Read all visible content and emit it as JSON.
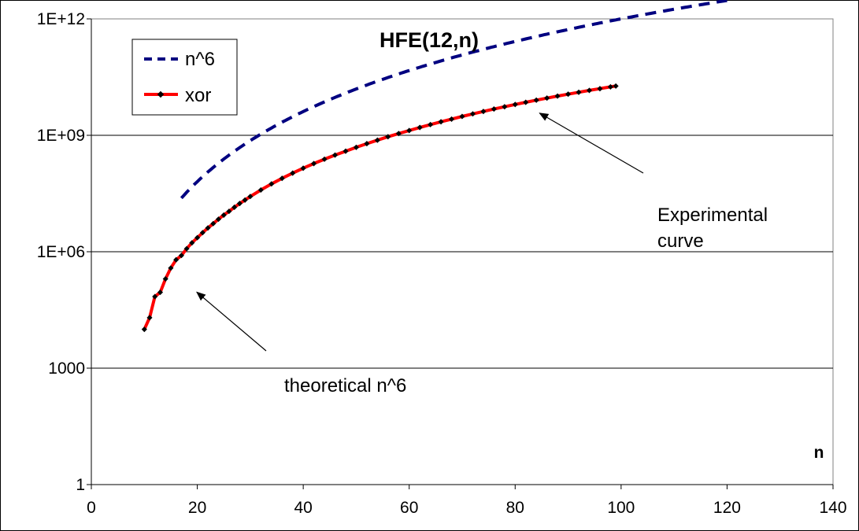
{
  "chart_data": {
    "type": "line",
    "title": "HFE(12,n)",
    "xlabel": "n",
    "ylabel": "",
    "xlim": [
      0,
      140
    ],
    "ylim": [
      1,
      1000000000000
    ],
    "y_scale": "log",
    "x_ticks": [
      0,
      20,
      40,
      60,
      80,
      100,
      120,
      140
    ],
    "y_ticks": [
      1,
      1000,
      1000000,
      1000000000,
      1000000000000
    ],
    "y_tick_labels": [
      "1",
      "1000",
      "1E+06",
      "1E+09",
      "1E+12"
    ],
    "grid": "horizontal",
    "legend_position": "top-left",
    "series": [
      {
        "name": "n^6",
        "style": "dashed",
        "color": "#000080",
        "x_range": [
          17,
          120
        ],
        "formula": "n^6 (theoretical)"
      },
      {
        "name": "xor",
        "style": "solid-with-markers",
        "color": "#ff0000",
        "marker_color": "#000000",
        "x": [
          10,
          11,
          12,
          13,
          14,
          15,
          16,
          17,
          18,
          19,
          20,
          21,
          22,
          23,
          24,
          25,
          26,
          27,
          28,
          29,
          30,
          32,
          34,
          36,
          38,
          40,
          42,
          44,
          46,
          48,
          50,
          52,
          54,
          56,
          58,
          60,
          62,
          64,
          66,
          68,
          70,
          72,
          74,
          76,
          78,
          80,
          82,
          84,
          86,
          88,
          90,
          92,
          94,
          96,
          98,
          99
        ],
        "y": [
          10000,
          20000,
          70000,
          90000,
          200000,
          380000,
          620000,
          800000,
          1200000,
          1700000,
          2300000,
          3100000,
          4100000,
          5300000,
          6900000,
          8800000,
          11000000,
          14000000,
          17500000,
          21500000,
          26500000,
          39000000,
          56000000,
          78000000,
          106000000,
          142000000,
          187000000,
          242000000,
          310000000,
          390000000,
          490000000,
          610000000,
          750000000,
          920000000,
          1110000000,
          1330000000,
          1590000000,
          1890000000,
          2230000000,
          2620000000,
          3060000000,
          3560000000,
          4120000000,
          4750000000,
          5450000000,
          6230000000,
          7100000000,
          8050000000,
          9100000000,
          10250000000,
          11500000000,
          12860000000,
          14350000000,
          15950000000,
          17700000000,
          18600000000
        ]
      }
    ],
    "annotations": [
      {
        "text_lines": [
          "Experimental",
          "curve"
        ],
        "points_to": [
          84,
          4500000000
        ]
      },
      {
        "text_lines": [
          "theoretical n^6"
        ],
        "points_to": [
          19,
          110000
        ]
      }
    ]
  }
}
